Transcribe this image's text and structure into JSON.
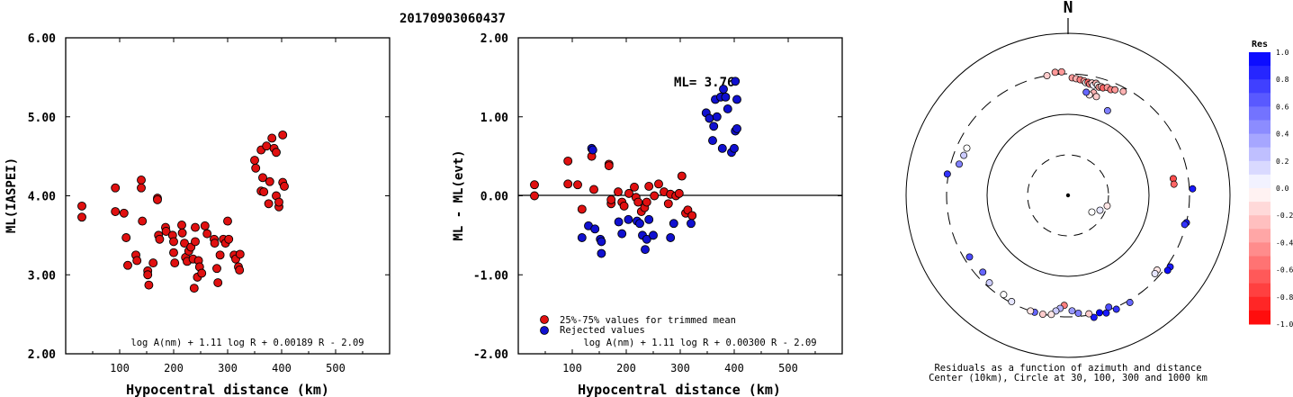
{
  "event_id": "20170903060437",
  "colors": {
    "accepted": "#e01010",
    "rejected": "#1010d0",
    "axis": "#000000"
  },
  "chart_data": [
    {
      "type": "scatter",
      "title": "",
      "xlabel": "Hypocentral distance (km)",
      "ylabel": "ML(IASPEI)",
      "xlim": [
        0,
        600
      ],
      "ylim": [
        2.0,
        6.0
      ],
      "xticks": [
        "100",
        "200",
        "300",
        "400",
        "500"
      ],
      "yticks": [
        "2.00",
        "3.00",
        "4.00",
        "5.00",
        "6.00"
      ],
      "formula": "log A(nm) + 1.11 log R + 0.00189 R - 2.09",
      "series": [
        {
          "color": "#e01010",
          "points": [
            [
              30,
              3.87
            ],
            [
              30,
              3.73
            ],
            [
              92,
              4.1
            ],
            [
              92,
              3.8
            ],
            [
              108,
              3.78
            ],
            [
              112,
              3.47
            ],
            [
              115,
              3.12
            ],
            [
              130,
              3.25
            ],
            [
              132,
              3.18
            ],
            [
              140,
              4.2
            ],
            [
              140,
              4.1
            ],
            [
              142,
              3.68
            ],
            [
              152,
              3.05
            ],
            [
              152,
              3.0
            ],
            [
              154,
              2.87
            ],
            [
              162,
              3.15
            ],
            [
              170,
              3.97
            ],
            [
              170,
              3.95
            ],
            [
              172,
              3.5
            ],
            [
              174,
              3.45
            ],
            [
              185,
              3.6
            ],
            [
              186,
              3.55
            ],
            [
              198,
              3.5
            ],
            [
              200,
              3.42
            ],
            [
              200,
              3.28
            ],
            [
              202,
              3.15
            ],
            [
              215,
              3.63
            ],
            [
              216,
              3.53
            ],
            [
              220,
              3.4
            ],
            [
              222,
              3.22
            ],
            [
              225,
              3.17
            ],
            [
              228,
              3.3
            ],
            [
              232,
              3.35
            ],
            [
              236,
              3.2
            ],
            [
              238,
              2.83
            ],
            [
              240,
              3.6
            ],
            [
              240,
              3.42
            ],
            [
              244,
              2.97
            ],
            [
              246,
              3.18
            ],
            [
              248,
              3.1
            ],
            [
              252,
              3.02
            ],
            [
              258,
              3.62
            ],
            [
              262,
              3.52
            ],
            [
              275,
              3.45
            ],
            [
              276,
              3.4
            ],
            [
              280,
              3.08
            ],
            [
              282,
              2.9
            ],
            [
              286,
              3.25
            ],
            [
              292,
              3.45
            ],
            [
              296,
              3.4
            ],
            [
              300,
              3.68
            ],
            [
              302,
              3.45
            ],
            [
              312,
              3.25
            ],
            [
              315,
              3.2
            ],
            [
              320,
              3.1
            ],
            [
              322,
              3.06
            ],
            [
              323,
              3.26
            ],
            [
              350,
              4.45
            ],
            [
              352,
              4.35
            ],
            [
              362,
              4.58
            ],
            [
              362,
              4.06
            ],
            [
              365,
              4.23
            ],
            [
              367,
              4.05
            ],
            [
              372,
              4.63
            ],
            [
              376,
              3.9
            ],
            [
              378,
              4.18
            ],
            [
              382,
              4.73
            ],
            [
              386,
              4.6
            ],
            [
              390,
              4.55
            ],
            [
              390,
              4.0
            ],
            [
              395,
              3.86
            ],
            [
              395,
              3.92
            ],
            [
              402,
              4.77
            ],
            [
              402,
              4.17
            ],
            [
              405,
              4.12
            ]
          ]
        }
      ]
    },
    {
      "type": "scatter",
      "title": "",
      "xlabel": "Hypocentral distance (km)",
      "ylabel": "ML - ML(evt)",
      "xlim": [
        0,
        600
      ],
      "ylim": [
        -2.0,
        2.0
      ],
      "xticks": [
        "100",
        "200",
        "300",
        "400",
        "500"
      ],
      "yticks": [
        "-2.00",
        "-1.00",
        "0.00",
        "1.00",
        "2.00"
      ],
      "ml_label": "ML= 3.76",
      "legend": [
        "25%-75% values for trimmed mean",
        "Rejected values"
      ],
      "formula": "log A(nm) + 1.11 log R + 0.00300 R - 2.09",
      "series": [
        {
          "name": "25%-75% values for trimmed mean",
          "color": "#e01010",
          "points": [
            [
              30,
              0.14
            ],
            [
              30,
              0.0
            ],
            [
              92,
              0.44
            ],
            [
              92,
              0.15
            ],
            [
              110,
              0.14
            ],
            [
              118,
              -0.17
            ],
            [
              136,
              0.5
            ],
            [
              140,
              0.08
            ],
            [
              168,
              0.4
            ],
            [
              168,
              0.38
            ],
            [
              172,
              -0.1
            ],
            [
              172,
              -0.05
            ],
            [
              185,
              0.05
            ],
            [
              192,
              -0.08
            ],
            [
              196,
              -0.13
            ],
            [
              205,
              0.03
            ],
            [
              215,
              0.11
            ],
            [
              218,
              -0.02
            ],
            [
              222,
              -0.08
            ],
            [
              228,
              -0.2
            ],
            [
              234,
              -0.15
            ],
            [
              238,
              -0.08
            ],
            [
              242,
              0.12
            ],
            [
              252,
              0.0
            ],
            [
              260,
              0.15
            ],
            [
              270,
              0.05
            ],
            [
              278,
              -0.1
            ],
            [
              282,
              0.02
            ],
            [
              292,
              0.0
            ],
            [
              298,
              0.03
            ],
            [
              303,
              0.25
            ],
            [
              310,
              -0.22
            ],
            [
              314,
              -0.18
            ],
            [
              322,
              -0.25
            ]
          ]
        },
        {
          "name": "Rejected values",
          "color": "#1010d0",
          "points": [
            [
              118,
              -0.53
            ],
            [
              130,
              -0.38
            ],
            [
              136,
              0.6
            ],
            [
              138,
              0.58
            ],
            [
              142,
              -0.42
            ],
            [
              152,
              -0.55
            ],
            [
              154,
              -0.58
            ],
            [
              154,
              -0.73
            ],
            [
              186,
              -0.33
            ],
            [
              192,
              -0.48
            ],
            [
              204,
              -0.3
            ],
            [
              220,
              -0.32
            ],
            [
              225,
              -0.35
            ],
            [
              230,
              -0.5
            ],
            [
              235,
              -0.68
            ],
            [
              238,
              -0.55
            ],
            [
              242,
              -0.3
            ],
            [
              250,
              -0.5
            ],
            [
              282,
              -0.53
            ],
            [
              288,
              -0.35
            ],
            [
              320,
              -0.35
            ],
            [
              348,
              1.05
            ],
            [
              354,
              0.98
            ],
            [
              360,
              0.7
            ],
            [
              362,
              0.88
            ],
            [
              365,
              1.22
            ],
            [
              368,
              1.0
            ],
            [
              375,
              1.25
            ],
            [
              378,
              0.6
            ],
            [
              380,
              1.35
            ],
            [
              384,
              1.25
            ],
            [
              388,
              1.1
            ],
            [
              395,
              0.55
            ],
            [
              400,
              0.6
            ],
            [
              402,
              0.82
            ],
            [
              402,
              1.45
            ],
            [
              405,
              0.85
            ],
            [
              405,
              1.22
            ]
          ]
        }
      ]
    },
    {
      "type": "polar-scatter",
      "north_label": "N",
      "colorbar": {
        "title": "Res",
        "labels": [
          "1.0",
          "0.8",
          "0.6",
          "0.4",
          "0.2",
          "0.0",
          "-0.2",
          "-0.4",
          "-0.6",
          "-0.8",
          "-1.0"
        ]
      },
      "caption_line1": "Residuals as a function of azimuth and distance",
      "caption_line2": "Center (10km), Circle at 30, 100, 300 and 1000 km",
      "points": [
        {
          "az": 350,
          "dist": 300,
          "res": -0.2
        },
        {
          "az": 354,
          "dist": 320,
          "res": -0.4
        },
        {
          "az": 357,
          "dist": 320,
          "res": -0.4
        },
        {
          "az": 2,
          "dist": 270,
          "res": -0.4
        },
        {
          "az": 4,
          "dist": 265,
          "res": -0.3
        },
        {
          "az": 6,
          "dist": 260,
          "res": -0.5
        },
        {
          "az": 8,
          "dist": 255,
          "res": -0.4
        },
        {
          "az": 9,
          "dist": 245,
          "res": 0.0
        },
        {
          "az": 10,
          "dist": 250,
          "res": -0.6
        },
        {
          "az": 11,
          "dist": 240,
          "res": -0.5
        },
        {
          "az": 12,
          "dist": 250,
          "res": -0.2
        },
        {
          "az": 13,
          "dist": 238,
          "res": 0.05
        },
        {
          "az": 14,
          "dist": 255,
          "res": -0.3
        },
        {
          "az": 15,
          "dist": 245,
          "res": 0.0
        },
        {
          "az": 16,
          "dist": 235,
          "res": -0.4
        },
        {
          "az": 17,
          "dist": 242,
          "res": -0.2
        },
        {
          "az": 18,
          "dist": 238,
          "res": -0.6
        },
        {
          "az": 20,
          "dist": 250,
          "res": -0.4
        },
        {
          "az": 22,
          "dist": 245,
          "res": -0.5
        },
        {
          "az": 24,
          "dist": 255,
          "res": -0.4
        },
        {
          "az": 28,
          "dist": 270,
          "res": -0.3
        },
        {
          "az": 14,
          "dist": 195,
          "res": -0.3
        },
        {
          "az": 16,
          "dist": 180,
          "res": -0.2
        },
        {
          "az": 12,
          "dist": 180,
          "res": -0.1
        },
        {
          "az": 10,
          "dist": 190,
          "res": 0.6
        },
        {
          "az": 25,
          "dist": 140,
          "res": 0.5
        },
        {
          "az": 105,
          "dist": 30,
          "res": -0.1
        },
        {
          "az": 115,
          "dist": 26,
          "res": 0.1
        },
        {
          "az": 125,
          "dist": 22,
          "res": 0.0
        },
        {
          "az": 81,
          "dist": 200,
          "res": -0.7
        },
        {
          "az": 84,
          "dist": 200,
          "res": -0.6
        },
        {
          "az": 87,
          "dist": 330,
          "res": 0.9
        },
        {
          "az": 103,
          "dist": 300,
          "res": 0.9
        },
        {
          "az": 104,
          "dist": 290,
          "res": 0.8
        },
        {
          "az": 125,
          "dist": 330,
          "res": 0.9
        },
        {
          "az": 127,
          "dist": 330,
          "res": 0.95
        },
        {
          "az": 130,
          "dist": 260,
          "res": -0.1
        },
        {
          "az": 132,
          "dist": 265,
          "res": 0.1
        },
        {
          "az": 150,
          "dist": 320,
          "res": 0.6
        },
        {
          "az": 157,
          "dist": 320,
          "res": 0.8
        },
        {
          "az": 162,
          "dist": 320,
          "res": 0.9
        },
        {
          "az": 165,
          "dist": 300,
          "res": 1.0
        },
        {
          "az": 168,
          "dist": 330,
          "res": 0.9
        },
        {
          "az": 160,
          "dist": 280,
          "res": 0.7
        },
        {
          "az": 170,
          "dist": 290,
          "res": -0.2
        },
        {
          "az": 175,
          "dist": 275,
          "res": 0.5
        },
        {
          "az": 178,
          "dist": 255,
          "res": 0.4
        },
        {
          "az": 182,
          "dist": 220,
          "res": -0.5
        },
        {
          "az": 184,
          "dist": 240,
          "res": 0.3
        },
        {
          "az": 186,
          "dist": 260,
          "res": 0.2
        },
        {
          "az": 188,
          "dist": 290,
          "res": -0.1
        },
        {
          "az": 192,
          "dist": 300,
          "res": -0.2
        },
        {
          "az": 196,
          "dist": 300,
          "res": 0.6
        },
        {
          "az": 198,
          "dist": 300,
          "res": -0.1
        },
        {
          "az": 208,
          "dist": 290,
          "res": 0.1
        },
        {
          "az": 213,
          "dist": 275,
          "res": 0.0
        },
        {
          "az": 222,
          "dist": 270,
          "res": 0.2
        },
        {
          "az": 228,
          "dist": 250,
          "res": 0.6
        },
        {
          "az": 238,
          "dist": 260,
          "res": 0.7
        },
        {
          "az": 280,
          "dist": 310,
          "res": 0.8
        },
        {
          "az": 286,
          "dist": 240,
          "res": 0.5
        },
        {
          "az": 291,
          "dist": 230,
          "res": 0.2
        },
        {
          "az": 295,
          "dist": 230,
          "res": 0.0
        }
      ]
    }
  ]
}
